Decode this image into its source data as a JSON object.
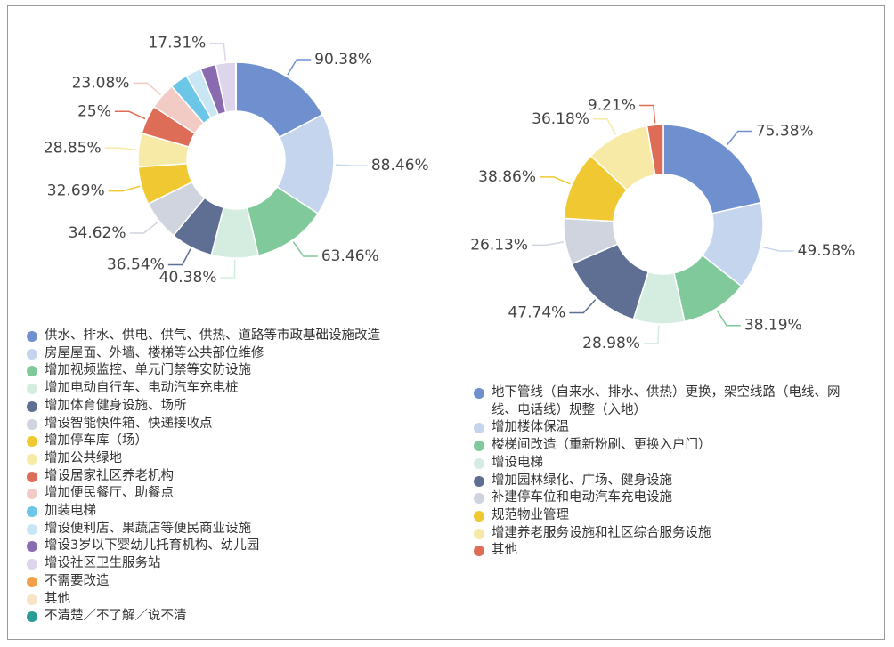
{
  "chart_data": [
    {
      "type": "donut",
      "categories": [
        "供水、排水、供电、供气、供热、道路等市政基础设施改造",
        "房屋屋面、外墙、楼梯等公共部位维修",
        "增加视频监控、单元门禁等安防设施",
        "增加电动自行车、电动汽车充电桩",
        "增加体育健身设施、场所",
        "增设智能快件箱、快递接收点",
        "增加停车库（场）",
        "增加公共绿地",
        "增设居家社区养老机构",
        "增加便民餐厅、助餐点",
        "加装电梯",
        "增设便利店、果蔬店等便民商业设施",
        "增设3岁以下婴幼儿托育机构、幼儿园",
        "增设社区卫生服务站",
        "不需要改造",
        "其他",
        "不清楚／不了解／说不清"
      ],
      "values": [
        90.38,
        88.46,
        63.46,
        40.38,
        36.54,
        34.62,
        32.69,
        28.85,
        25,
        23.08,
        15.38,
        13.46,
        13.46,
        17.31,
        0,
        0,
        0
      ],
      "value_labels": [
        "90.38%",
        "88.46%",
        "63.46%",
        "40.38%",
        "36.54%",
        "34.62%",
        "32.69%",
        "28.85%",
        "25%",
        "23.08%",
        null,
        null,
        null,
        "17.31%",
        null,
        null,
        null
      ],
      "colors": [
        "#6f8fcf",
        "#c5d5ee",
        "#7fc99a",
        "#d4ede0",
        "#5f6f94",
        "#d0d4de",
        "#f0c932",
        "#f7eaa6",
        "#de6d57",
        "#f3cbc5",
        "#6cc6e8",
        "#c9e6f5",
        "#8a6bb0",
        "#dcd5ec",
        "#f0a04b",
        "#f7e3c5",
        "#2a9c96"
      ]
    },
    {
      "type": "donut",
      "categories": [
        "地下管线（自来水、排水、供热）更换，架空线路（电线、网线、电话线）规整（入地）",
        "增加楼体保温",
        "楼梯间改造（重新粉刷、更换入户门）",
        "增设电梯",
        "增加园林绿化、广场、健身设施",
        "补建停车位和电动汽车充电设施",
        "规范物业管理",
        "增建养老服务设施和社区综合服务设施",
        "其他"
      ],
      "values": [
        75.38,
        49.58,
        38.19,
        28.98,
        47.74,
        26.13,
        38.86,
        36.18,
        9.21
      ],
      "value_labels": [
        "75.38%",
        "49.58%",
        "38.19%",
        "28.98%",
        "47.74%",
        "26.13%",
        "38.86%",
        "36.18%",
        "9.21%"
      ],
      "colors": [
        "#6f8fcf",
        "#c5d5ee",
        "#7fc99a",
        "#d4ede0",
        "#5f6f94",
        "#d0d4de",
        "#f0c932",
        "#f7eaa6",
        "#de6d57"
      ]
    }
  ]
}
